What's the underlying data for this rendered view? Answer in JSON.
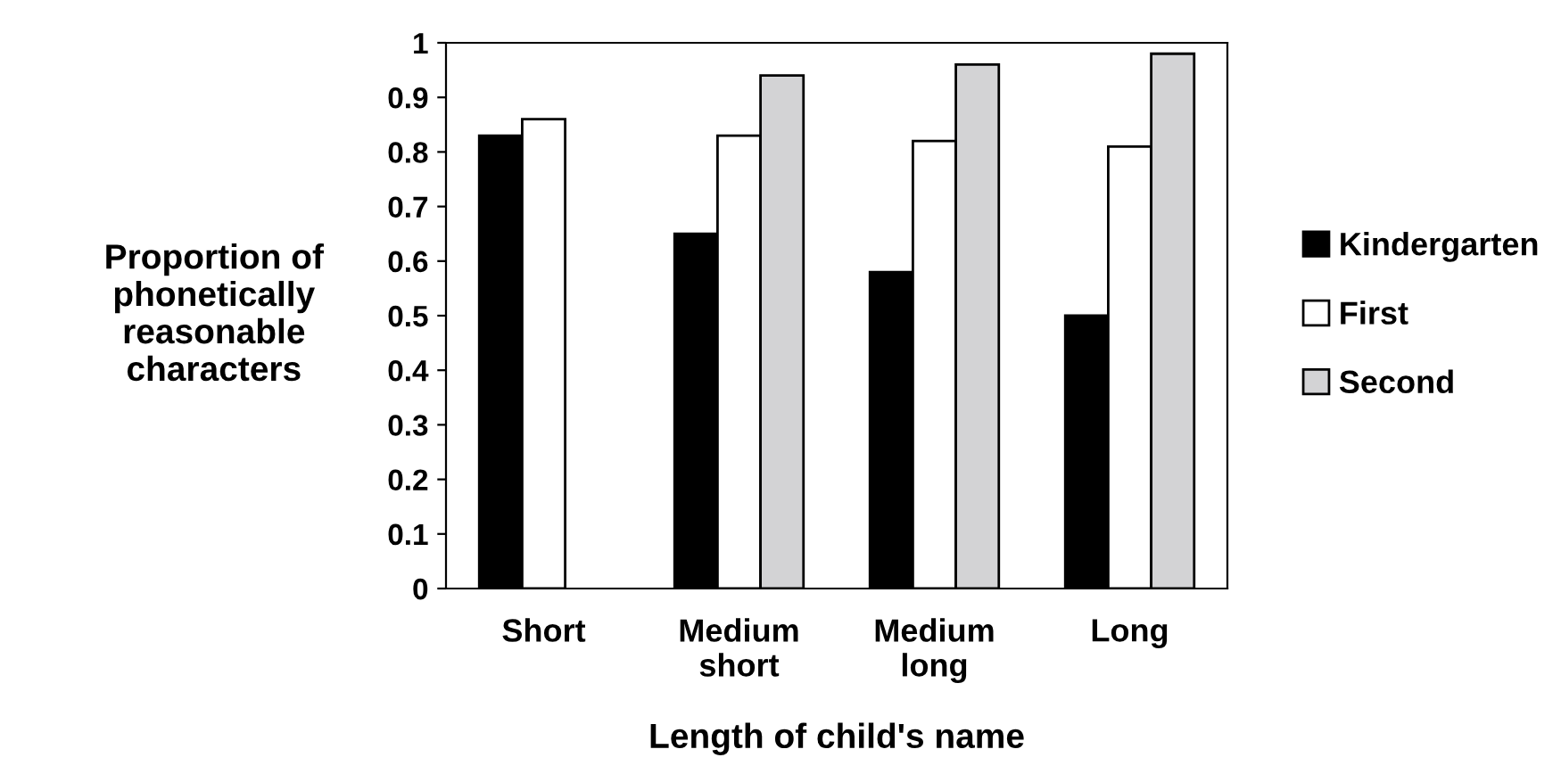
{
  "chart_data": {
    "type": "bar",
    "xlabel": "Length of child's name",
    "ylabel": "Proportion of\nphonetically\nreasonable\ncharacters",
    "categories": [
      "Short",
      "Medium\nshort",
      "Medium\nlong",
      "Long"
    ],
    "series": [
      {
        "name": "Kindergarten",
        "color": "#000000",
        "values": [
          0.83,
          0.65,
          0.58,
          0.5
        ]
      },
      {
        "name": "First",
        "color": "#ffffff",
        "values": [
          0.86,
          0.83,
          0.82,
          0.81
        ]
      },
      {
        "name": "Second",
        "color": "#d3d3d5",
        "values": [
          null,
          0.94,
          0.96,
          0.98
        ]
      }
    ],
    "ylim": [
      0,
      1
    ],
    "yticks": [
      0,
      0.1,
      0.2,
      0.3,
      0.4,
      0.5,
      0.6,
      0.7,
      0.8,
      0.9,
      1
    ],
    "grid": false,
    "legend": "right"
  }
}
